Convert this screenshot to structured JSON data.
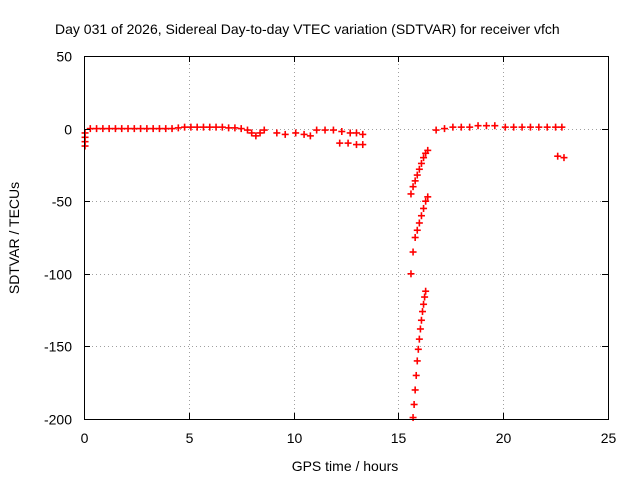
{
  "chart_data": {
    "type": "scatter",
    "title": "Day 031 of 2026, Sidereal Day-to-day VTEC variation (SDTVAR) for receiver vfch",
    "xlabel": "GPS time / hours",
    "ylabel": "SDTVAR / TECUs",
    "xlim": [
      0,
      25
    ],
    "ylim": [
      -200,
      50
    ],
    "xticks": [
      "0",
      "5",
      "10",
      "15",
      "20",
      "25"
    ],
    "yticks": [
      "50",
      "0",
      "-50",
      "-100",
      "-150",
      "-200"
    ],
    "grid": true,
    "marker": "+",
    "marker_color": "#ff0000",
    "series": [
      {
        "name": "SDTVAR",
        "points": [
          [
            0.05,
            -3
          ],
          [
            0.05,
            -6
          ],
          [
            0.05,
            -9
          ],
          [
            0.05,
            -12
          ],
          [
            0.3,
            0
          ],
          [
            0.6,
            0
          ],
          [
            0.9,
            0
          ],
          [
            1.2,
            0
          ],
          [
            1.5,
            0
          ],
          [
            1.8,
            0
          ],
          [
            2.1,
            0
          ],
          [
            2.4,
            0
          ],
          [
            2.7,
            0
          ],
          [
            3.0,
            0
          ],
          [
            3.3,
            0
          ],
          [
            3.6,
            0
          ],
          [
            3.9,
            0
          ],
          [
            4.2,
            0
          ],
          [
            4.5,
            0.5
          ],
          [
            4.8,
            1
          ],
          [
            5.1,
            1
          ],
          [
            5.4,
            1
          ],
          [
            5.7,
            1
          ],
          [
            6.0,
            1
          ],
          [
            6.3,
            1
          ],
          [
            6.6,
            1
          ],
          [
            6.9,
            0.5
          ],
          [
            7.2,
            0.5
          ],
          [
            7.5,
            0
          ],
          [
            7.8,
            -1
          ],
          [
            8.0,
            -3
          ],
          [
            8.2,
            -5
          ],
          [
            8.4,
            -3
          ],
          [
            8.6,
            -1
          ],
          [
            9.2,
            -3
          ],
          [
            9.6,
            -4
          ],
          [
            10.1,
            -3
          ],
          [
            10.5,
            -4
          ],
          [
            10.8,
            -5
          ],
          [
            11.1,
            -1
          ],
          [
            11.5,
            -1
          ],
          [
            11.9,
            -1
          ],
          [
            12.3,
            -2
          ],
          [
            12.7,
            -3
          ],
          [
            13.0,
            -3
          ],
          [
            13.3,
            -4
          ],
          [
            12.2,
            -10
          ],
          [
            12.6,
            -10
          ],
          [
            13.0,
            -11
          ],
          [
            13.3,
            -11
          ],
          [
            15.6,
            -45
          ],
          [
            15.7,
            -40
          ],
          [
            15.8,
            -36
          ],
          [
            15.9,
            -32
          ],
          [
            16.0,
            -28
          ],
          [
            16.1,
            -24
          ],
          [
            16.2,
            -20
          ],
          [
            16.3,
            -17
          ],
          [
            16.4,
            -15
          ],
          [
            15.6,
            -100
          ],
          [
            15.7,
            -85
          ],
          [
            15.8,
            -75
          ],
          [
            15.9,
            -70
          ],
          [
            16.0,
            -65
          ],
          [
            16.1,
            -60
          ],
          [
            16.2,
            -55
          ],
          [
            16.3,
            -50
          ],
          [
            16.4,
            -47
          ],
          [
            15.7,
            -199
          ],
          [
            15.75,
            -190
          ],
          [
            15.8,
            -180
          ],
          [
            15.85,
            -170
          ],
          [
            15.9,
            -160
          ],
          [
            15.95,
            -152
          ],
          [
            16.0,
            -145
          ],
          [
            16.05,
            -138
          ],
          [
            16.1,
            -132
          ],
          [
            16.15,
            -126
          ],
          [
            16.2,
            -121
          ],
          [
            16.25,
            -116
          ],
          [
            16.3,
            -112
          ],
          [
            16.8,
            -1
          ],
          [
            17.2,
            0
          ],
          [
            17.6,
            1
          ],
          [
            18.0,
            1
          ],
          [
            18.4,
            1
          ],
          [
            18.8,
            2
          ],
          [
            19.2,
            2
          ],
          [
            19.6,
            2
          ],
          [
            20.1,
            1
          ],
          [
            20.5,
            1
          ],
          [
            20.9,
            1
          ],
          [
            21.3,
            1
          ],
          [
            21.7,
            1
          ],
          [
            22.1,
            1
          ],
          [
            22.5,
            1
          ],
          [
            22.8,
            1
          ],
          [
            22.6,
            -19
          ],
          [
            22.9,
            -20
          ]
        ]
      }
    ]
  }
}
